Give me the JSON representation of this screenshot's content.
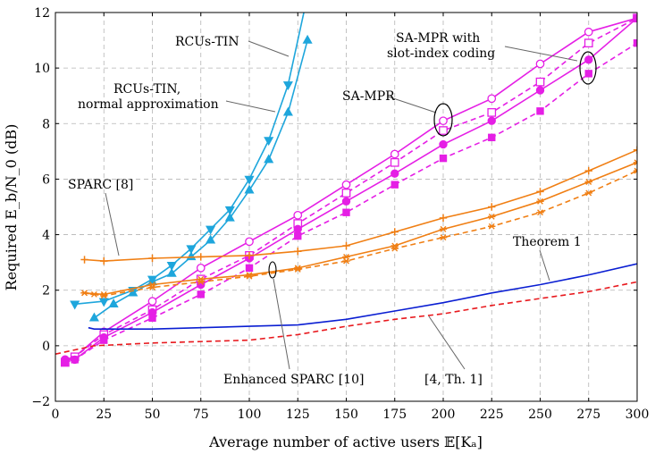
{
  "chart_data": {
    "type": "line",
    "xlabel": "Average number of active users 𝔼[Kₐ]",
    "ylabel": "Required E_b/N_0 (dB)",
    "xlim": [
      0,
      300
    ],
    "ylim": [
      -2,
      12
    ],
    "xticks": [
      "0",
      "25",
      "50",
      "75",
      "100",
      "125",
      "150",
      "175",
      "200",
      "225",
      "250",
      "275",
      "300"
    ],
    "yticks": [
      "−2",
      "0",
      "2",
      "4",
      "6",
      "8",
      "10",
      "12"
    ],
    "grid": true,
    "annotations": [
      "RCUs-TIN",
      "RCUs-TIN,",
      "normal approximation",
      "SA-MPR with",
      "slot-index coding",
      "SA-MPR",
      "SPARC [8]",
      "Theorem 1",
      "Enhanced SPARC [10]",
      "[4, Th. 1]"
    ],
    "series": [
      {
        "color": "#e51fe5",
        "style": "solid",
        "marker": "circle-open",
        "x": [
          5,
          10,
          25,
          50,
          75,
          100,
          125,
          150,
          175,
          200,
          225,
          250,
          275,
          300
        ],
        "y": [
          -0.5,
          -0.4,
          0.5,
          1.6,
          2.8,
          3.75,
          4.7,
          5.8,
          6.9,
          8.1,
          8.9,
          10.15,
          11.3,
          11.8
        ]
      },
      {
        "color": "#e51fe5",
        "style": "dashed",
        "marker": "square-open",
        "x": [
          5,
          10,
          25,
          50,
          75,
          100,
          125,
          150,
          175,
          200,
          225,
          250,
          275,
          300
        ],
        "y": [
          -0.6,
          -0.4,
          0.4,
          1.3,
          2.4,
          3.25,
          4.4,
          5.5,
          6.6,
          7.75,
          8.4,
          9.5,
          10.9,
          11.8
        ]
      },
      {
        "color": "#e51fe5",
        "style": "solid",
        "marker": "circle-filled",
        "x": [
          5,
          10,
          25,
          50,
          75,
          100,
          125,
          150,
          175,
          200,
          225,
          250,
          275,
          300
        ],
        "y": [
          -0.5,
          -0.5,
          0.3,
          1.2,
          2.2,
          3.15,
          4.2,
          5.2,
          6.2,
          7.25,
          8.1,
          9.2,
          10.3,
          11.8
        ]
      },
      {
        "color": "#e51fe5",
        "style": "dashed",
        "marker": "square-filled",
        "x": [
          5,
          10,
          25,
          50,
          75,
          100,
          125,
          150,
          175,
          200,
          225,
          250,
          275,
          300
        ],
        "y": [
          -0.6,
          -0.5,
          0.2,
          1.0,
          1.85,
          2.8,
          3.95,
          4.8,
          5.8,
          6.75,
          7.5,
          8.45,
          9.8,
          10.9
        ]
      },
      {
        "color": "#1ea6dc",
        "style": "solid",
        "marker": "triangle-up",
        "x": [
          20,
          30,
          40,
          50,
          60,
          70,
          80,
          90,
          100,
          110,
          120,
          130
        ],
        "y": [
          1.0,
          1.5,
          1.9,
          2.3,
          2.6,
          3.2,
          3.8,
          4.6,
          5.6,
          6.7,
          8.4,
          11.0
        ]
      },
      {
        "color": "#1ea6dc",
        "style": "solid",
        "marker": "triangle-down",
        "x": [
          10,
          25,
          40,
          50,
          60,
          70,
          80,
          90,
          100,
          110,
          120,
          130
        ],
        "y": [
          1.5,
          1.6,
          2.0,
          2.4,
          2.9,
          3.5,
          4.2,
          4.9,
          6.0,
          7.4,
          9.4,
          12.6
        ]
      },
      {
        "color": "#f07f14",
        "style": "solid",
        "marker": "plus",
        "x": [
          15,
          25,
          50,
          75,
          100,
          125,
          150,
          175,
          200,
          225,
          250,
          275,
          300
        ],
        "y": [
          3.1,
          3.05,
          3.15,
          3.2,
          3.25,
          3.4,
          3.6,
          4.1,
          4.6,
          5.0,
          5.55,
          6.3,
          7.05
        ]
      },
      {
        "color": "#f07f14",
        "style": "solid",
        "marker": "star",
        "x": [
          15,
          25,
          50,
          75,
          100,
          125,
          150,
          175,
          200,
          225,
          250,
          275,
          300
        ],
        "y": [
          1.9,
          1.85,
          2.2,
          2.4,
          2.55,
          2.8,
          3.2,
          3.6,
          4.2,
          4.65,
          5.2,
          5.9,
          6.6
        ]
      },
      {
        "color": "#f07f14",
        "style": "dashed",
        "marker": "star",
        "x": [
          15,
          20,
          25,
          50,
          75,
          100,
          125,
          150,
          175,
          200,
          225,
          250,
          275,
          300
        ],
        "y": [
          1.9,
          1.85,
          1.8,
          2.1,
          2.3,
          2.5,
          2.75,
          3.05,
          3.5,
          3.9,
          4.3,
          4.8,
          5.5,
          6.3
        ]
      },
      {
        "color": "#0a1ed2",
        "style": "solid",
        "marker": "none",
        "x": [
          17,
          20,
          50,
          100,
          125,
          150,
          175,
          200,
          225,
          250,
          275,
          300
        ],
        "y": [
          0.65,
          0.6,
          0.6,
          0.7,
          0.75,
          0.95,
          1.25,
          1.55,
          1.9,
          2.2,
          2.55,
          2.95
        ]
      },
      {
        "color": "#e8191e",
        "style": "dashed",
        "marker": "none",
        "x": [
          0,
          10,
          20,
          50,
          100,
          125,
          150,
          175,
          200,
          225,
          250,
          275,
          300
        ],
        "y": [
          -0.3,
          -0.15,
          0.0,
          0.1,
          0.2,
          0.4,
          0.7,
          0.95,
          1.15,
          1.45,
          1.7,
          1.95,
          2.3
        ]
      }
    ]
  }
}
